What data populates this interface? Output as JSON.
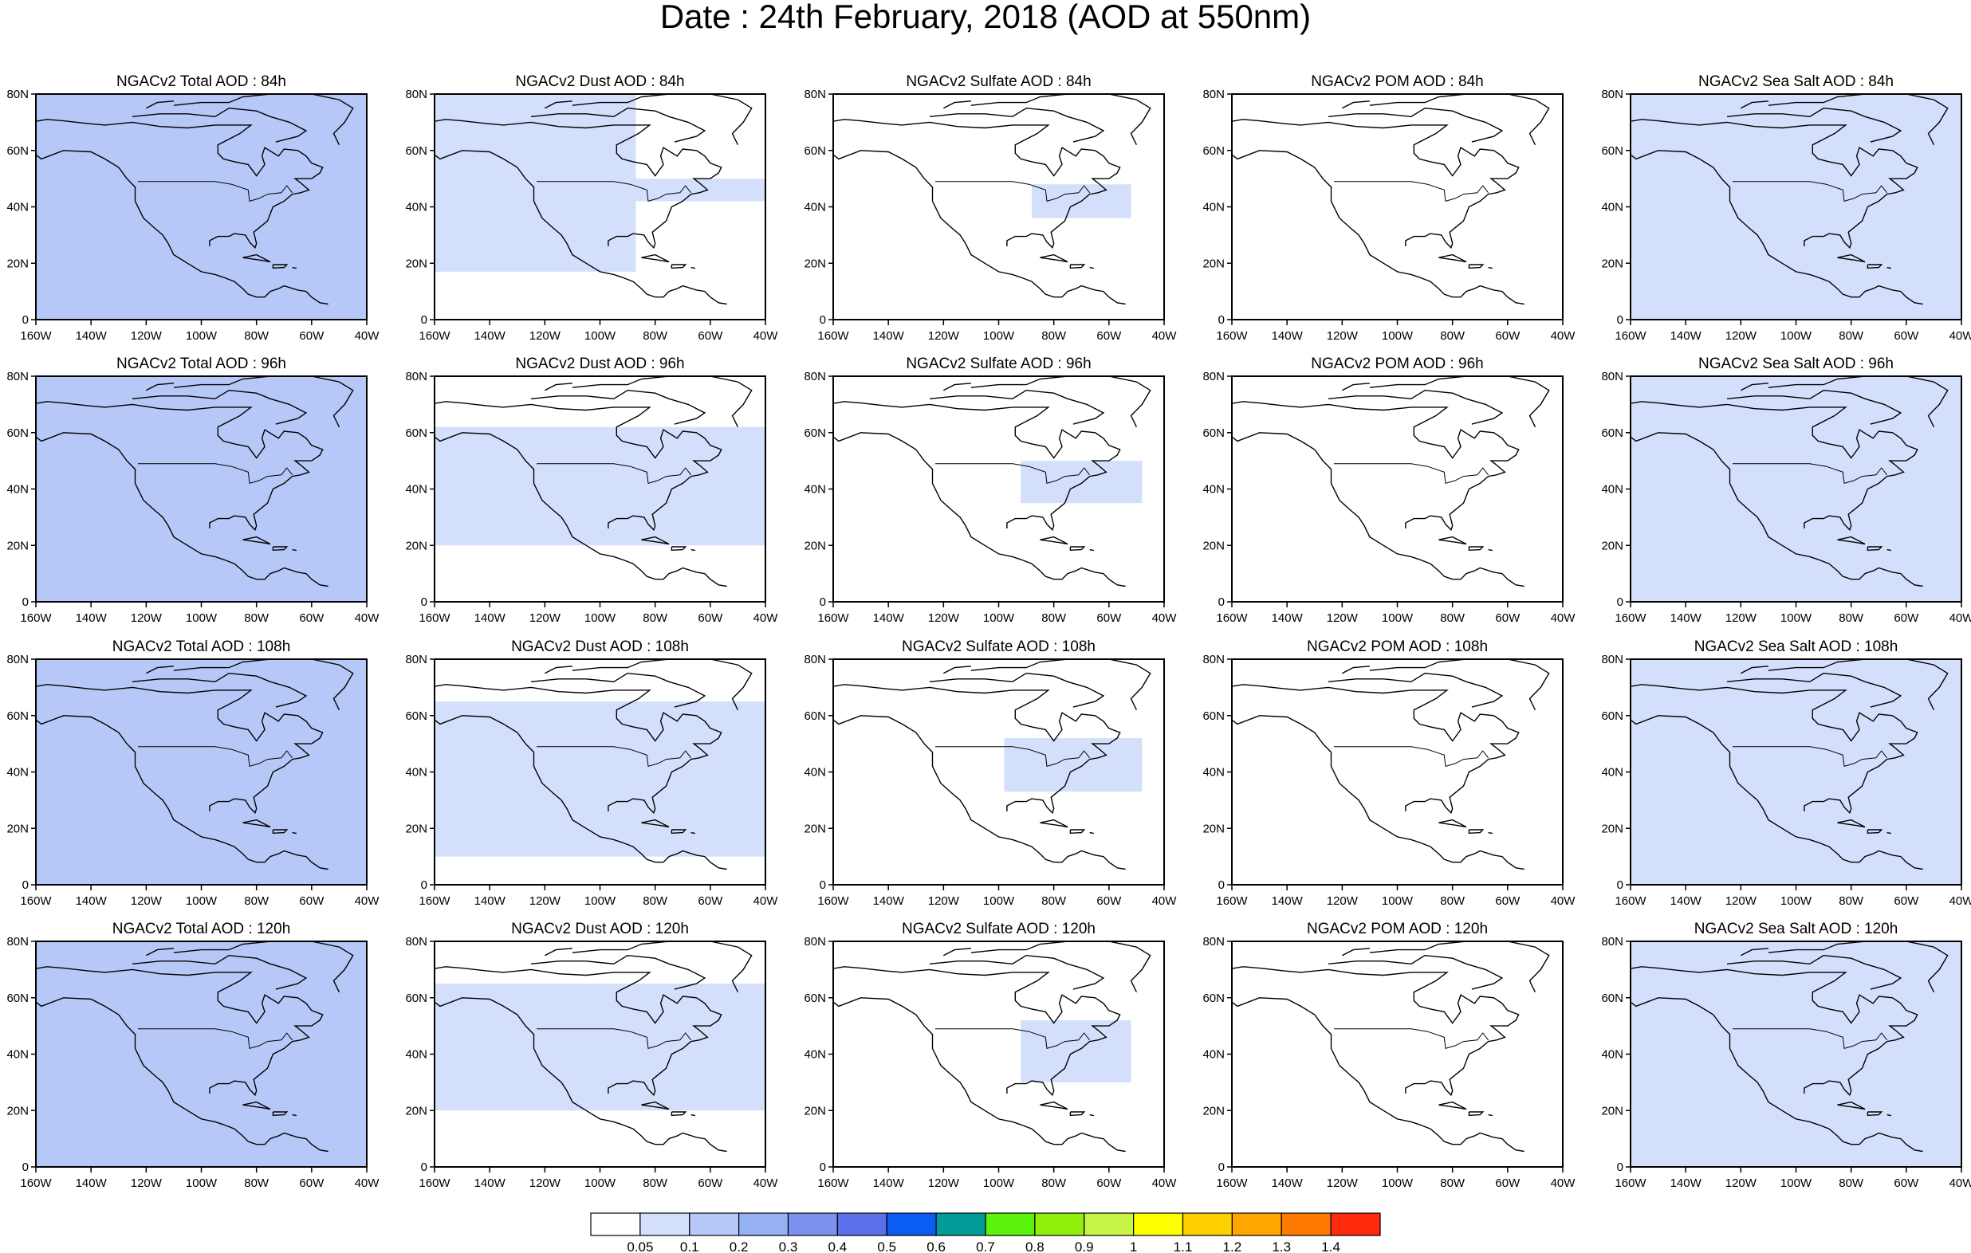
{
  "title": "Date : 24th February, 2018 (AOD at 550nm)",
  "panel_titles": [
    [
      "NGACv2 Total AOD : 84h",
      "NGACv2 Dust AOD : 84h",
      "NGACv2 Sulfate AOD : 84h",
      "NGACv2 POM AOD : 84h",
      "NGACv2 Sea Salt AOD : 84h"
    ],
    [
      "NGACv2 Total AOD : 96h",
      "NGACv2 Dust AOD : 96h",
      "NGACv2 Sulfate AOD : 96h",
      "NGACv2 POM AOD : 96h",
      "NGACv2 Sea Salt AOD : 96h"
    ],
    [
      "NGACv2 Total AOD : 108h",
      "NGACv2 Dust AOD : 108h",
      "NGACv2 Sulfate AOD : 108h",
      "NGACv2 POM AOD : 108h",
      "NGACv2 Sea Salt AOD : 108h"
    ],
    [
      "NGACv2 Total AOD : 120h",
      "NGACv2 Dust AOD : 120h",
      "NGACv2 Sulfate AOD : 120h",
      "NGACv2 POM AOD : 120h",
      "NGACv2 Sea Salt  AOD : 120h"
    ]
  ],
  "lon_ticks": [
    "160W",
    "140W",
    "120W",
    "100W",
    "80W",
    "60W",
    "40W"
  ],
  "lat_ticks": [
    "0",
    "20N",
    "40N",
    "60N",
    "80N"
  ],
  "map_extent": {
    "lon": [
      -160,
      -40
    ],
    "lat": [
      0,
      80
    ]
  },
  "colorbar": {
    "colors": [
      "#ffffff",
      "#d4e0fb",
      "#b6c8f7",
      "#95b1f4",
      "#7b92ef",
      "#5a6fe8",
      "#0a5cf3",
      "#019c98",
      "#5bf20b",
      "#90f00b",
      "#c8f448",
      "#ffff00",
      "#ffd000",
      "#ffa600",
      "#ff7a00",
      "#ff2a0c"
    ],
    "labels": [
      "0.05",
      "0.1",
      "0.2",
      "0.3",
      "0.4",
      "0.5",
      "0.6",
      "0.7",
      "0.8",
      "0.9",
      "1",
      "1.1",
      "1.2",
      "1.3",
      "1.4"
    ]
  },
  "aod_fields": [
    {
      "col": 0,
      "row": 0,
      "lon": [
        -160,
        -40
      ],
      "lat": [
        0,
        80
      ],
      "level": 2
    },
    {
      "col": 0,
      "row": 1,
      "lon": [
        -160,
        -40
      ],
      "lat": [
        0,
        80
      ],
      "level": 2
    },
    {
      "col": 0,
      "row": 2,
      "lon": [
        -160,
        -40
      ],
      "lat": [
        0,
        80
      ],
      "level": 2
    },
    {
      "col": 0,
      "row": 3,
      "lon": [
        -160,
        -40
      ],
      "lat": [
        0,
        80
      ],
      "level": 2
    },
    {
      "col": 1,
      "row": 0,
      "lon": [
        -160,
        -87
      ],
      "lat": [
        17,
        80
      ],
      "level": 1
    },
    {
      "col": 1,
      "row": 0,
      "lon": [
        -87,
        -40
      ],
      "lat": [
        42,
        50
      ],
      "level": 1
    },
    {
      "col": 1,
      "row": 1,
      "lon": [
        -160,
        -40
      ],
      "lat": [
        20,
        62
      ],
      "level": 1
    },
    {
      "col": 1,
      "row": 2,
      "lon": [
        -160,
        -40
      ],
      "lat": [
        10,
        65
      ],
      "level": 1
    },
    {
      "col": 1,
      "row": 3,
      "lon": [
        -160,
        -40
      ],
      "lat": [
        20,
        65
      ],
      "level": 1
    },
    {
      "col": 2,
      "row": 0,
      "lon": [
        -88,
        -52
      ],
      "lat": [
        36,
        48
      ],
      "level": 1
    },
    {
      "col": 2,
      "row": 1,
      "lon": [
        -92,
        -48
      ],
      "lat": [
        35,
        50
      ],
      "level": 1
    },
    {
      "col": 2,
      "row": 2,
      "lon": [
        -98,
        -48
      ],
      "lat": [
        33,
        52
      ],
      "level": 1
    },
    {
      "col": 2,
      "row": 3,
      "lon": [
        -92,
        -52
      ],
      "lat": [
        30,
        52
      ],
      "level": 1
    },
    {
      "col": 4,
      "row": 0,
      "lon": [
        -160,
        -40
      ],
      "lat": [
        0,
        80
      ],
      "level": 1
    },
    {
      "col": 4,
      "row": 1,
      "lon": [
        -160,
        -40
      ],
      "lat": [
        0,
        80
      ],
      "level": 1
    },
    {
      "col": 4,
      "row": 2,
      "lon": [
        -160,
        -40
      ],
      "lat": [
        0,
        80
      ],
      "level": 1
    },
    {
      "col": 4,
      "row": 3,
      "lon": [
        -160,
        -40
      ],
      "lat": [
        0,
        80
      ],
      "level": 1
    }
  ]
}
